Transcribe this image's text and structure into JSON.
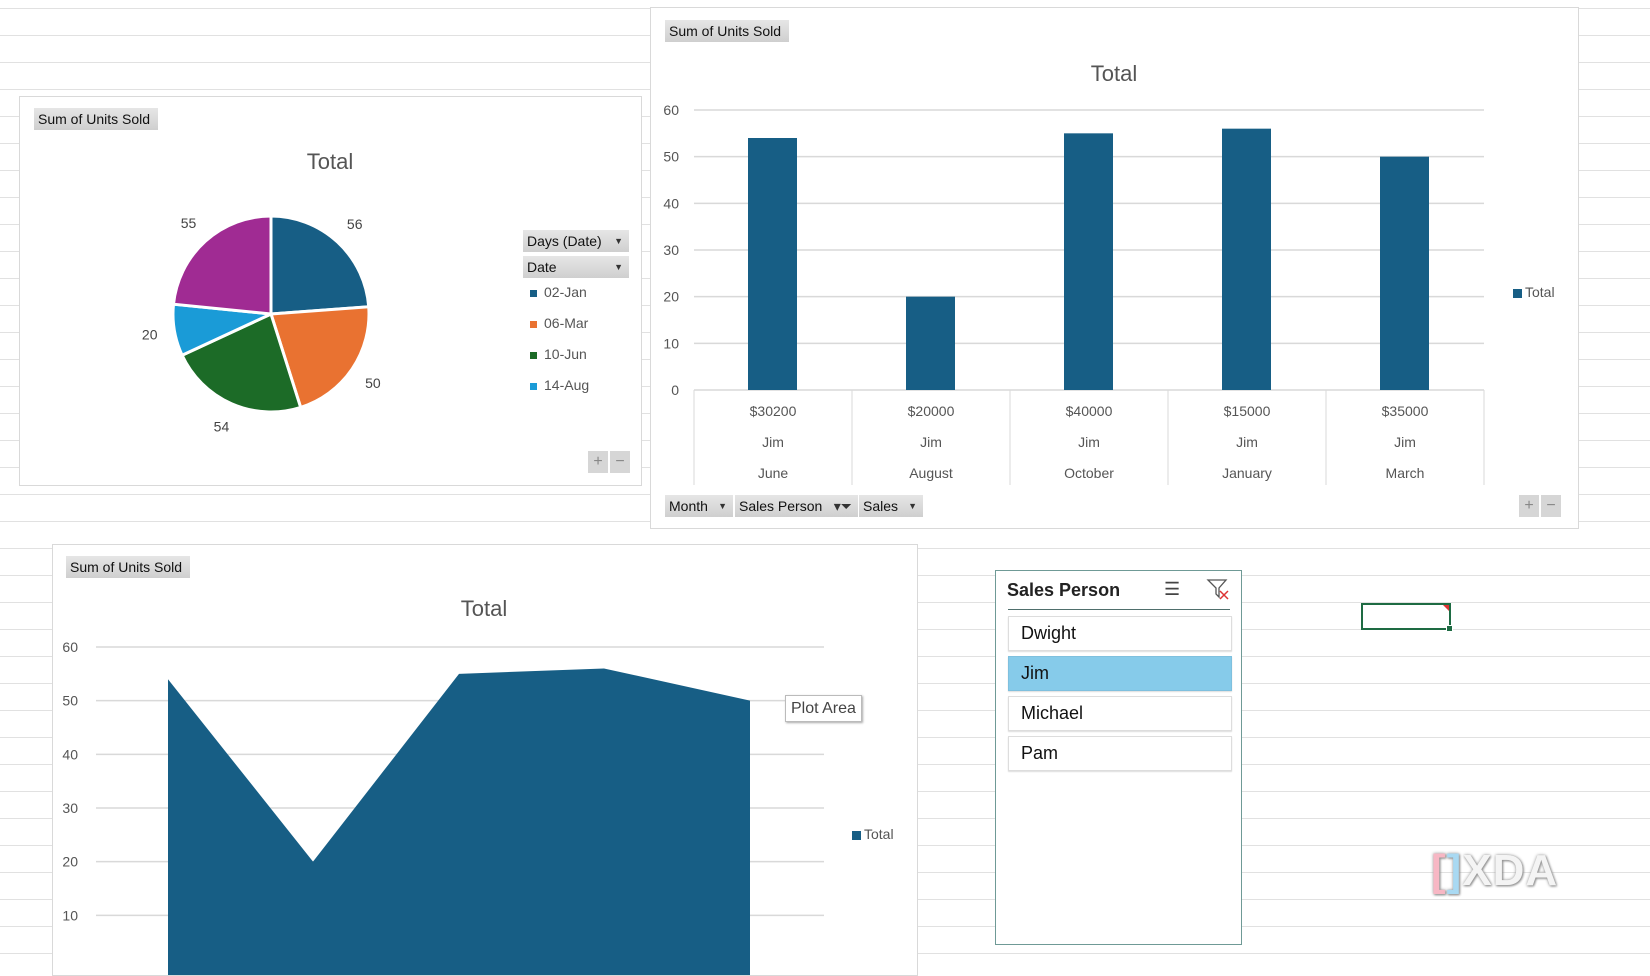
{
  "colors": {
    "primary": "#175e85",
    "orange": "#e97231",
    "green": "#1c6b27",
    "light_blue": "#1a9bd7",
    "purple": "#a02b93",
    "slicer_selected": "#86cbea"
  },
  "pie_chart": {
    "field_button": "Sum of Units Sold",
    "legend_buttons": [
      "Days (Date)",
      "Date"
    ],
    "chart_data": {
      "type": "pie",
      "title": "Total",
      "slices": [
        {
          "label": "02-Jan",
          "value": 56,
          "color": "#175e85"
        },
        {
          "label": "06-Mar",
          "value": 50,
          "color": "#e97231"
        },
        {
          "label": "10-Jun",
          "value": 54,
          "color": "#1c6b27"
        },
        {
          "label": "14-Aug",
          "value": 20,
          "color": "#1a9bd7"
        },
        {
          "label": "",
          "value": 55,
          "color": "#a02b93"
        }
      ],
      "legend": "right"
    }
  },
  "bar_chart": {
    "field_button": "Sum of Units Sold",
    "axis_buttons": [
      "Month",
      "Sales Person",
      "Sales"
    ],
    "chart_data": {
      "type": "bar",
      "title": "Total",
      "categories": [
        [
          "$30200",
          "Jim",
          "June"
        ],
        [
          "$20000",
          "Jim",
          "August"
        ],
        [
          "$40000",
          "Jim",
          "October"
        ],
        [
          "$15000",
          "Jim",
          "January"
        ],
        [
          "$35000",
          "Jim",
          "March"
        ]
      ],
      "series": [
        {
          "name": "Total",
          "values": [
            54,
            20,
            55,
            56,
            50
          ]
        }
      ],
      "ylim": [
        0,
        60
      ],
      "yticks": [
        "0",
        "10",
        "20",
        "30",
        "40",
        "50",
        "60"
      ],
      "grid": true,
      "legend": "right"
    }
  },
  "area_chart": {
    "field_button": "Sum of Units Sold",
    "tooltip": "Plot Area",
    "chart_data": {
      "type": "area",
      "title": "Total",
      "series": [
        {
          "name": "Total",
          "values": [
            54,
            20,
            55,
            56,
            50
          ]
        }
      ],
      "ylim": [
        0,
        60
      ],
      "yticks": [
        "10",
        "20",
        "30",
        "40",
        "50",
        "60"
      ],
      "grid": true,
      "legend": "right"
    }
  },
  "slicer": {
    "title": "Sales Person",
    "items": [
      {
        "label": "Dwight",
        "selected": false
      },
      {
        "label": "Jim",
        "selected": true
      },
      {
        "label": "Michael",
        "selected": false
      },
      {
        "label": "Pam",
        "selected": false
      }
    ]
  },
  "watermark": "XDA"
}
